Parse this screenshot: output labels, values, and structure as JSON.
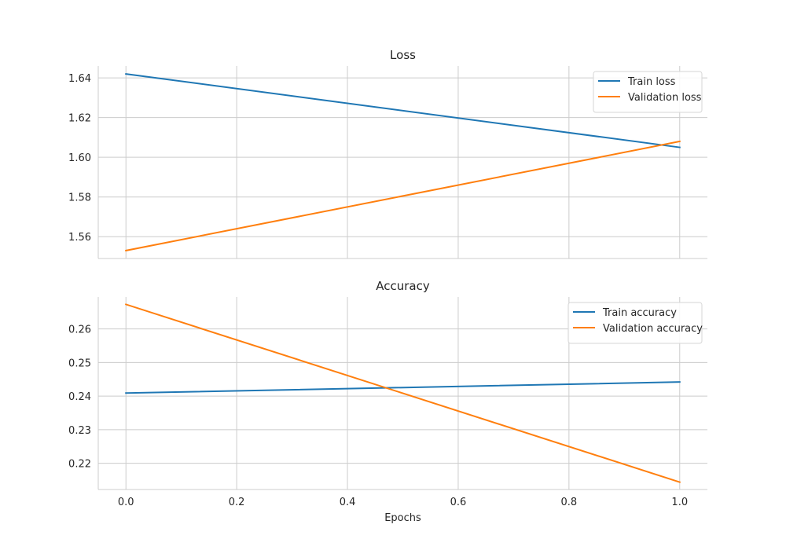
{
  "chart_data": [
    {
      "type": "line",
      "title": "Loss",
      "xlabel": "",
      "ylabel": "",
      "x": [
        0.0,
        1.0
      ],
      "xlim": [
        -0.05,
        1.05
      ],
      "ylim": [
        1.549,
        1.646
      ],
      "xticks": [
        "0.0",
        "0.2",
        "0.4",
        "0.6",
        "0.8",
        "1.0"
      ],
      "yticks": [
        "1.56",
        "1.58",
        "1.60",
        "1.62",
        "1.64"
      ],
      "grid": true,
      "legend_position": "upper right",
      "series": [
        {
          "name": "Train loss",
          "color": "#1f77b4",
          "values": [
            1.642,
            1.605
          ]
        },
        {
          "name": "Validation loss",
          "color": "#ff7f0e",
          "values": [
            1.553,
            1.608
          ]
        }
      ]
    },
    {
      "type": "line",
      "title": "Accuracy",
      "xlabel": "Epochs",
      "ylabel": "",
      "x": [
        0.0,
        1.0
      ],
      "xlim": [
        -0.05,
        1.05
      ],
      "ylim": [
        0.2122,
        0.2695
      ],
      "xticks": [
        "0.0",
        "0.2",
        "0.4",
        "0.6",
        "0.8",
        "1.0"
      ],
      "yticks": [
        "0.22",
        "0.23",
        "0.24",
        "0.25",
        "0.26"
      ],
      "grid": true,
      "legend_position": "upper right",
      "series": [
        {
          "name": "Train accuracy",
          "color": "#1f77b4",
          "values": [
            0.2409,
            0.2442
          ]
        },
        {
          "name": "Validation accuracy",
          "color": "#ff7f0e",
          "values": [
            0.2673,
            0.2144
          ]
        }
      ]
    }
  ]
}
